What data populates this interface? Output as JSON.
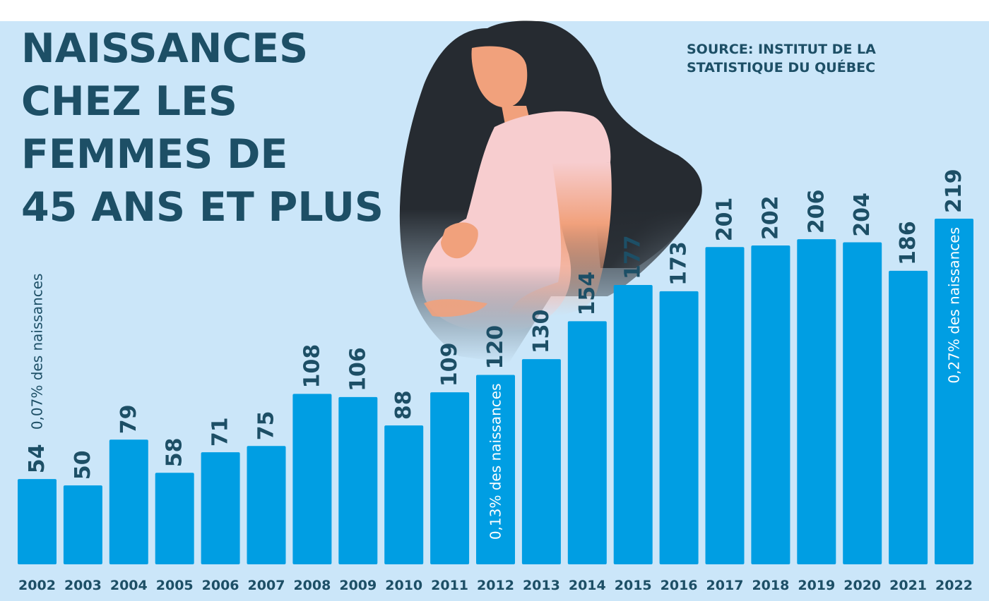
{
  "title_lines": [
    "NAISSANCES",
    "CHEZ LES",
    "FEMMES DE",
    "45 ANS ET PLUS"
  ],
  "source_lines": [
    "SOURCE: INSTITUT DE LA",
    "STATISTIQUE DU QUÉBEC"
  ],
  "colors": {
    "bar": "#009ee3",
    "background": "#cbe6f9",
    "text": "#1d4f66",
    "hair": "#262b31",
    "skin": "#f1a17c",
    "shirt": "#f7cdcf"
  },
  "illustration": "pregnant-woman",
  "chart_data": {
    "type": "bar",
    "categories": [
      "2002",
      "2003",
      "2004",
      "2005",
      "2006",
      "2007",
      "2008",
      "2009",
      "2010",
      "2011",
      "2012",
      "2013",
      "2014",
      "2015",
      "2016",
      "2017",
      "2018",
      "2019",
      "2020",
      "2021",
      "2022"
    ],
    "values": [
      54,
      50,
      79,
      58,
      71,
      75,
      108,
      106,
      88,
      109,
      120,
      130,
      154,
      177,
      173,
      201,
      202,
      206,
      204,
      186,
      219
    ],
    "title": "NAISSANCES CHEZ LES FEMMES DE 45 ANS ET PLUS",
    "xlabel": "",
    "ylabel": "",
    "ylim": [
      0,
      219
    ],
    "grid": false,
    "annotations": [
      {
        "category": "2002",
        "text": "0,07% des naissances",
        "placement": "above-bar"
      },
      {
        "category": "2012",
        "text": "0,13% des naissances",
        "placement": "inside-bar"
      },
      {
        "category": "2022",
        "text": "0,27% des naissances",
        "placement": "inside-bar"
      }
    ]
  }
}
